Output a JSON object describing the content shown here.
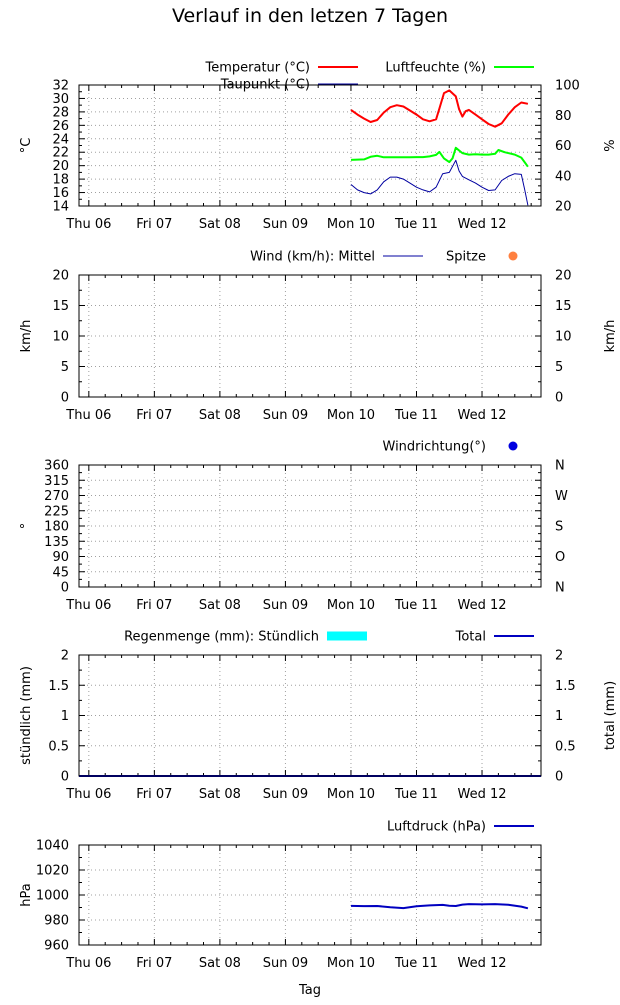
{
  "page": {
    "title": "Verlauf in den letzen 7 Tagen",
    "xlabel": "Tag"
  },
  "colors": {
    "temperature": "#ff0000",
    "dewpoint": "#0000a0",
    "humidity": "#00ff00",
    "wind_mean": "#0000a0",
    "wind_gust": "#ff8040",
    "wind_dir": "#0000e0",
    "rain_hourly": "#00ffff",
    "rain_total": "#0000c0",
    "pressure": "#0000c0"
  },
  "chart_data": [
    {
      "id": "temp",
      "type": "line",
      "categories": [
        "Thu 06",
        "Fri 07",
        "Sat 08",
        "Sun 09",
        "Mon 10",
        "Tue 11",
        "Wed 12"
      ],
      "xlim": [
        -0.15,
        6.9
      ],
      "ylabel": "°C",
      "ylabel_right": "%",
      "ylim": [
        14,
        32
      ],
      "yticks": [
        14,
        16,
        18,
        20,
        22,
        24,
        26,
        28,
        30,
        32
      ],
      "ylim_right": [
        20,
        100
      ],
      "yticks_right": [
        20,
        40,
        60,
        80,
        100
      ],
      "grid": true,
      "legend": [
        {
          "label": "Temperatur (°C)",
          "color": "#ff0000"
        },
        {
          "label": "Luftfeuchte (%)",
          "color": "#00ff00"
        },
        {
          "label": "Taupunkt (°C)",
          "color": "#0000a0"
        }
      ],
      "series": [
        {
          "name": "Temperatur (°C)",
          "axis": "left",
          "width": 2,
          "color": "#ff0000",
          "points": [
            [
              4.0,
              28.3
            ],
            [
              4.1,
              27.6
            ],
            [
              4.2,
              27.0
            ],
            [
              4.3,
              26.5
            ],
            [
              4.4,
              26.8
            ],
            [
              4.5,
              27.9
            ],
            [
              4.6,
              28.7
            ],
            [
              4.7,
              29.0
            ],
            [
              4.8,
              28.8
            ],
            [
              4.9,
              28.2
            ],
            [
              5.0,
              27.6
            ],
            [
              5.1,
              26.9
            ],
            [
              5.2,
              26.6
            ],
            [
              5.3,
              26.9
            ],
            [
              5.35,
              28.5
            ],
            [
              5.42,
              30.8
            ],
            [
              5.5,
              31.2
            ],
            [
              5.6,
              30.3
            ],
            [
              5.65,
              28.4
            ],
            [
              5.7,
              27.3
            ],
            [
              5.75,
              28.1
            ],
            [
              5.8,
              28.3
            ],
            [
              5.9,
              27.6
            ],
            [
              6.0,
              26.9
            ],
            [
              6.1,
              26.2
            ],
            [
              6.2,
              25.8
            ],
            [
              6.3,
              26.3
            ],
            [
              6.4,
              27.6
            ],
            [
              6.5,
              28.7
            ],
            [
              6.6,
              29.4
            ],
            [
              6.7,
              29.2
            ]
          ]
        },
        {
          "name": "Taupunkt (°C)",
          "axis": "left",
          "width": 1,
          "color": "#0000a0",
          "points": [
            [
              4.0,
              17.2
            ],
            [
              4.1,
              16.4
            ],
            [
              4.2,
              16.0
            ],
            [
              4.3,
              15.8
            ],
            [
              4.4,
              16.4
            ],
            [
              4.5,
              17.6
            ],
            [
              4.6,
              18.3
            ],
            [
              4.7,
              18.3
            ],
            [
              4.8,
              18.0
            ],
            [
              4.9,
              17.4
            ],
            [
              5.0,
              16.8
            ],
            [
              5.1,
              16.4
            ],
            [
              5.2,
              16.1
            ],
            [
              5.3,
              16.8
            ],
            [
              5.4,
              18.8
            ],
            [
              5.5,
              19.0
            ],
            [
              5.6,
              20.8
            ],
            [
              5.65,
              19.2
            ],
            [
              5.7,
              18.4
            ],
            [
              5.8,
              17.9
            ],
            [
              5.9,
              17.4
            ],
            [
              6.0,
              16.8
            ],
            [
              6.1,
              16.3
            ],
            [
              6.2,
              16.4
            ],
            [
              6.3,
              17.8
            ],
            [
              6.4,
              18.4
            ],
            [
              6.5,
              18.8
            ],
            [
              6.6,
              18.7
            ],
            [
              6.65,
              16.5
            ],
            [
              6.7,
              14.1
            ]
          ]
        },
        {
          "name": "Luftfeuchte (%)",
          "axis": "right",
          "width": 2,
          "color": "#00ff00",
          "points": [
            [
              4.0,
              50.5
            ],
            [
              4.2,
              50.8
            ],
            [
              4.3,
              52.5
            ],
            [
              4.4,
              53.2
            ],
            [
              4.5,
              52.2
            ],
            [
              4.7,
              52.2
            ],
            [
              4.9,
              52.2
            ],
            [
              5.0,
              52.3
            ],
            [
              5.1,
              52.3
            ],
            [
              5.2,
              52.8
            ],
            [
              5.3,
              53.8
            ],
            [
              5.35,
              55.8
            ],
            [
              5.42,
              51.5
            ],
            [
              5.5,
              49.0
            ],
            [
              5.55,
              51.5
            ],
            [
              5.6,
              58.5
            ],
            [
              5.7,
              55.0
            ],
            [
              5.8,
              54.0
            ],
            [
              5.9,
              54.2
            ],
            [
              6.0,
              54.0
            ],
            [
              6.1,
              54.0
            ],
            [
              6.2,
              54.5
            ],
            [
              6.25,
              57.0
            ],
            [
              6.35,
              55.5
            ],
            [
              6.5,
              54.0
            ],
            [
              6.6,
              52.0
            ],
            [
              6.65,
              49.0
            ],
            [
              6.7,
              46.0
            ]
          ]
        }
      ]
    },
    {
      "id": "wind",
      "type": "line",
      "categories": [
        "Thu 06",
        "Fri 07",
        "Sat 08",
        "Sun 09",
        "Mon 10",
        "Tue 11",
        "Wed 12"
      ],
      "xlim": [
        -0.15,
        6.9
      ],
      "ylabel": "km/h",
      "ylabel_right": "km/h",
      "ylim": [
        0,
        20
      ],
      "yticks": [
        0,
        5,
        10,
        15,
        20
      ],
      "yticks_right": [
        0,
        5,
        10,
        15,
        20
      ],
      "grid": true,
      "legend": [
        {
          "label": "Wind (km/h): Mittel",
          "color": "#0000a0"
        },
        {
          "label": "Spitze",
          "color": "#ff8040"
        }
      ],
      "series": []
    },
    {
      "id": "winddir",
      "type": "scatter",
      "categories": [
        "Thu 06",
        "Fri 07",
        "Sat 08",
        "Sun 09",
        "Mon 10",
        "Tue 11",
        "Wed 12"
      ],
      "xlim": [
        -0.15,
        6.9
      ],
      "ylabel": "°",
      "ylim": [
        0,
        360
      ],
      "yticks": [
        0,
        45,
        90,
        135,
        180,
        225,
        270,
        315,
        360
      ],
      "yticks_right": [
        "N",
        "O",
        "S",
        "W",
        "N"
      ],
      "grid": true,
      "legend": [
        {
          "label": "Windrichtung(°)",
          "color": "#0000e0"
        }
      ],
      "series": []
    },
    {
      "id": "rain",
      "type": "bar",
      "categories": [
        "Thu 06",
        "Fri 07",
        "Sat 08",
        "Sun 09",
        "Mon 10",
        "Tue 11",
        "Wed 12"
      ],
      "xlim": [
        -0.15,
        6.9
      ],
      "ylabel": "stündlich (mm)",
      "ylabel_right": "total (mm)",
      "ylim": [
        0,
        2
      ],
      "yticks": [
        "0",
        "0.5",
        "1",
        "1.5",
        "2"
      ],
      "yticks_right": [
        "0",
        "0.5",
        "1",
        "1.5",
        "2"
      ],
      "grid": true,
      "legend": [
        {
          "label": "Regenmenge (mm): Stündlich",
          "color": "#00ffff"
        },
        {
          "label": "Total",
          "color": "#0000c0"
        }
      ],
      "series": [
        {
          "name": "Total",
          "axis": "left",
          "width": 2,
          "color": "#0000c0",
          "points": [
            [
              -0.15,
              0
            ],
            [
              6.9,
              0
            ]
          ]
        }
      ]
    },
    {
      "id": "pressure",
      "type": "line",
      "categories": [
        "Thu 06",
        "Fri 07",
        "Sat 08",
        "Sun 09",
        "Mon 10",
        "Tue 11",
        "Wed 12"
      ],
      "xlim": [
        -0.15,
        6.9
      ],
      "ylabel": "hPa",
      "ylim": [
        960,
        1050
      ],
      "yticks": [
        960,
        980,
        1000,
        1020,
        1040
      ],
      "grid": true,
      "legend": [
        {
          "label": "Luftdruck (hPa)",
          "color": "#0000c0"
        }
      ],
      "series": [
        {
          "name": "Luftdruck (hPa)",
          "axis": "left",
          "width": 2,
          "color": "#0000c0",
          "points": [
            [
              4.0,
              995.2
            ],
            [
              4.2,
              995.0
            ],
            [
              4.4,
              995.1
            ],
            [
              4.6,
              994.0
            ],
            [
              4.8,
              993.2
            ],
            [
              5.0,
              994.8
            ],
            [
              5.2,
              995.6
            ],
            [
              5.4,
              996.1
            ],
            [
              5.5,
              995.4
            ],
            [
              5.6,
              995.1
            ],
            [
              5.7,
              996.4
            ],
            [
              5.8,
              996.8
            ],
            [
              6.0,
              996.5
            ],
            [
              6.2,
              996.8
            ],
            [
              6.4,
              996.3
            ],
            [
              6.6,
              994.6
            ],
            [
              6.7,
              993.0
            ]
          ]
        }
      ]
    }
  ]
}
